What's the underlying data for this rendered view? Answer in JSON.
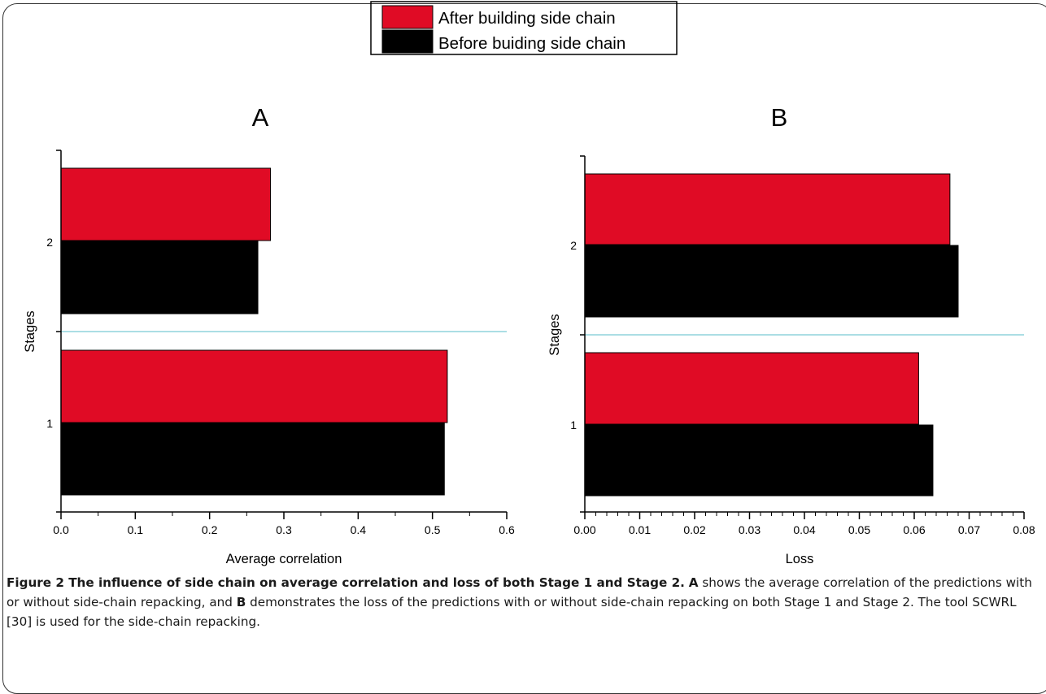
{
  "legend": [
    {
      "name": "After building side chain",
      "color": "#e00b25"
    },
    {
      "name": "Before buiding side chain",
      "color": "#000000"
    }
  ],
  "chart_data": [
    {
      "type": "bar",
      "orientation": "horizontal",
      "panel_label": "A",
      "categories": [
        "1",
        "2"
      ],
      "series": [
        {
          "name": "After building side chain",
          "color": "#e00b25",
          "values": [
            0.52,
            0.282
          ]
        },
        {
          "name": "Before buiding side chain",
          "color": "#000000",
          "values": [
            0.516,
            0.265
          ]
        }
      ],
      "xlabel": "Average correlation",
      "ylabel": "Stages",
      "xlim": [
        0.0,
        0.6
      ],
      "xticks": [
        "0.0",
        "0.1",
        "0.2",
        "0.3",
        "0.4",
        "0.5",
        "0.6"
      ],
      "legend": "top-center",
      "grid": false
    },
    {
      "type": "bar",
      "orientation": "horizontal",
      "panel_label": "B",
      "categories": [
        "1",
        "2"
      ],
      "series": [
        {
          "name": "After building side chain",
          "color": "#e00b25",
          "values": [
            0.0608,
            0.0665
          ]
        },
        {
          "name": "Before buiding side chain",
          "color": "#000000",
          "values": [
            0.0634,
            0.068
          ]
        }
      ],
      "xlabel": "Loss",
      "ylabel": "Stages",
      "xlim": [
        0.0,
        0.08
      ],
      "xticks": [
        "0.00",
        "0.01",
        "0.02",
        "0.03",
        "0.04",
        "0.05",
        "0.06",
        "0.07",
        "0.08"
      ],
      "legend": "top-center",
      "grid": false
    }
  ],
  "caption": {
    "bold_title": "Figure 2 The influence of side chain on average correlation and loss of both Stage 1 and Stage 2.",
    "seg_a_label": "A",
    "seg_a_text": "shows the average correlation of the predictions with or without side-chain repacking, and",
    "seg_b_label": "B",
    "seg_b_text": "demonstrates the loss of the predictions with or without side-chain repacking on both Stage 1 and Stage 2. The tool SCWRL [30] is used for the side-chain repacking."
  }
}
